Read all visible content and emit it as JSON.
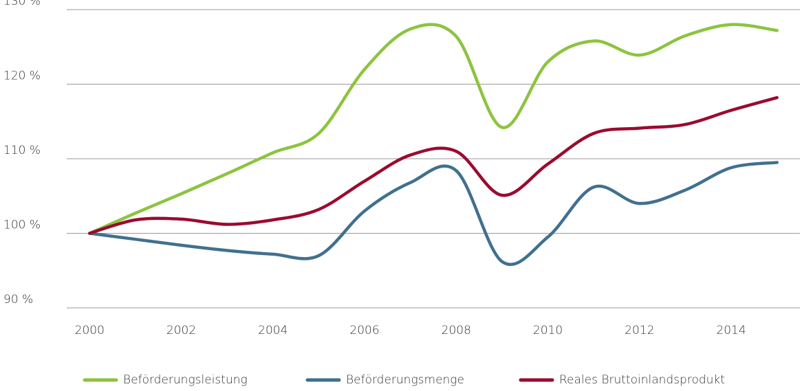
{
  "chart_data": {
    "type": "line",
    "x": [
      2000,
      2001,
      2002,
      2003,
      2004,
      2005,
      2006,
      2007,
      2008,
      2009,
      2010,
      2011,
      2012,
      2013,
      2014,
      2015
    ],
    "series": [
      {
        "name": "Beförderungsleistung",
        "color": "#8cc43f",
        "values": [
          100,
          102.7,
          105.3,
          108,
          110.8,
          113.4,
          122,
          127.4,
          126.4,
          114.2,
          123,
          125.8,
          123.9,
          126.5,
          128,
          127.2
        ]
      },
      {
        "name": "Beförderungsmenge",
        "color": "#41708f",
        "values": [
          100,
          99.2,
          98.4,
          97.7,
          97.2,
          97,
          103,
          106.8,
          108.4,
          96.2,
          99.5,
          106.2,
          104,
          105.8,
          108.8,
          109.5
        ]
      },
      {
        "name": "Reales Bruttoinlandsprodukt",
        "color": "#9b0b2f",
        "values": [
          100,
          101.8,
          101.9,
          101.2,
          101.8,
          103.2,
          107,
          110.5,
          111,
          105.1,
          109.3,
          113.4,
          114.1,
          114.6,
          116.5,
          118.2
        ]
      }
    ],
    "xlim": [
      1999.5,
      2015.5
    ],
    "xticks": [
      2000,
      2002,
      2004,
      2006,
      2008,
      2010,
      2012,
      2014
    ],
    "ylim": [
      90,
      130
    ],
    "yticks": [
      {
        "value": 90,
        "label": "90 %"
      },
      {
        "value": 100,
        "label": "100 %"
      },
      {
        "value": 110,
        "label": "110 %"
      },
      {
        "value": 120,
        "label": "120 %"
      },
      {
        "value": 130,
        "label": "130 %"
      }
    ],
    "grid": true,
    "legend": "bottom"
  }
}
